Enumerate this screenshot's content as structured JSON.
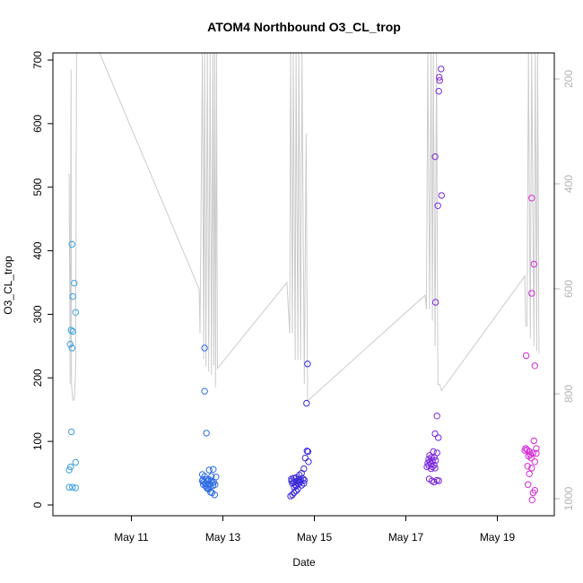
{
  "chart_data": {
    "type": "scatter",
    "title": "ATOM4 Northbound O3_CL_trop",
    "xlabel": "Date",
    "ylabel": "O3_CL_trop",
    "xlim": [
      9.5,
      20.3
    ],
    "ylim": [
      0,
      700
    ],
    "y_ticks": [
      0,
      100,
      200,
      300,
      400,
      500,
      600,
      700
    ],
    "x_ticks": [
      11,
      13,
      15,
      17,
      19
    ],
    "x_tick_labels": [
      "May 11",
      "May 13",
      "May 15",
      "May 17",
      "May 19"
    ],
    "y2_ticks": [
      200,
      400,
      600,
      800,
      1000
    ],
    "y2_axis_color": "#b3b3b3",
    "line_color": "#cccccc",
    "groups": [
      {
        "color": "#3aa0e0",
        "points": [
          [
            9.7,
            410
          ],
          [
            9.75,
            349
          ],
          [
            9.72,
            328
          ],
          [
            9.78,
            303
          ],
          [
            9.68,
            275
          ],
          [
            9.72,
            273
          ],
          [
            9.66,
            253
          ],
          [
            9.7,
            247
          ],
          [
            9.69,
            115
          ],
          [
            9.78,
            67
          ],
          [
            9.67,
            60
          ],
          [
            9.64,
            55
          ],
          [
            9.64,
            28
          ],
          [
            9.71,
            28
          ],
          [
            9.78,
            27
          ]
        ]
      },
      {
        "color": "#2f6ce6",
        "points": [
          [
            12.6,
            247
          ],
          [
            12.6,
            179
          ],
          [
            12.64,
            113
          ],
          [
            12.55,
            48
          ],
          [
            12.7,
            55
          ],
          [
            12.79,
            56
          ],
          [
            12.6,
            45
          ],
          [
            12.75,
            45
          ],
          [
            12.64,
            40
          ],
          [
            12.7,
            40
          ],
          [
            12.85,
            44
          ],
          [
            12.55,
            38
          ],
          [
            12.58,
            36
          ],
          [
            12.62,
            34
          ],
          [
            12.67,
            37
          ],
          [
            12.72,
            33
          ],
          [
            12.77,
            35
          ],
          [
            12.8,
            36
          ],
          [
            12.57,
            32
          ],
          [
            12.62,
            30
          ],
          [
            12.67,
            32
          ],
          [
            12.72,
            29
          ],
          [
            12.78,
            30
          ],
          [
            12.83,
            32
          ],
          [
            12.64,
            28
          ],
          [
            12.66,
            26
          ],
          [
            12.69,
            25
          ],
          [
            12.73,
            20
          ],
          [
            12.76,
            19
          ],
          [
            12.82,
            16
          ],
          [
            12.56,
            40
          ],
          [
            12.74,
            38
          ]
        ]
      },
      {
        "color": "#3a28d8",
        "points": [
          [
            14.85,
            222
          ],
          [
            14.83,
            160
          ],
          [
            14.84,
            85
          ],
          [
            14.86,
            84
          ],
          [
            14.87,
            68
          ],
          [
            14.8,
            74
          ],
          [
            14.77,
            57
          ],
          [
            14.72,
            50
          ],
          [
            14.67,
            47
          ],
          [
            14.6,
            43
          ],
          [
            14.55,
            42
          ],
          [
            14.5,
            41
          ],
          [
            14.65,
            40
          ],
          [
            14.7,
            40
          ],
          [
            14.75,
            41
          ],
          [
            14.5,
            38
          ],
          [
            14.55,
            36
          ],
          [
            14.62,
            37
          ],
          [
            14.68,
            38
          ],
          [
            14.78,
            39
          ],
          [
            14.52,
            34
          ],
          [
            14.58,
            32
          ],
          [
            14.65,
            33
          ],
          [
            14.72,
            31
          ],
          [
            14.77,
            34
          ],
          [
            14.6,
            30
          ],
          [
            14.56,
            28
          ],
          [
            14.64,
            25
          ],
          [
            14.6,
            22
          ],
          [
            14.55,
            19
          ],
          [
            14.52,
            16
          ],
          [
            14.48,
            14
          ],
          [
            14.69,
            36
          ]
        ]
      },
      {
        "color": "#7a28dc",
        "points": [
          [
            17.77,
            686
          ],
          [
            17.73,
            673
          ],
          [
            17.74,
            668
          ],
          [
            17.72,
            651
          ],
          [
            17.64,
            548
          ],
          [
            17.78,
            487
          ],
          [
            17.7,
            471
          ],
          [
            17.65,
            319
          ],
          [
            17.68,
            140
          ],
          [
            17.64,
            112
          ],
          [
            17.71,
            106
          ],
          [
            17.6,
            84
          ],
          [
            17.68,
            82
          ],
          [
            17.52,
            78
          ],
          [
            17.56,
            75
          ],
          [
            17.62,
            75
          ],
          [
            17.5,
            72
          ],
          [
            17.58,
            70
          ],
          [
            17.65,
            70
          ],
          [
            17.52,
            68
          ],
          [
            17.48,
            66
          ],
          [
            17.55,
            65
          ],
          [
            17.62,
            63
          ],
          [
            17.5,
            62
          ],
          [
            17.46,
            60
          ],
          [
            17.58,
            60
          ],
          [
            17.64,
            58
          ],
          [
            17.55,
            57
          ],
          [
            17.51,
            41
          ],
          [
            17.57,
            38
          ],
          [
            17.62,
            36
          ],
          [
            17.68,
            39
          ],
          [
            17.72,
            38
          ]
        ]
      },
      {
        "color": "#d628d6",
        "points": [
          [
            19.75,
            483
          ],
          [
            19.8,
            379
          ],
          [
            19.75,
            333
          ],
          [
            19.63,
            235
          ],
          [
            19.82,
            219
          ],
          [
            19.8,
            101
          ],
          [
            19.62,
            89
          ],
          [
            19.85,
            89
          ],
          [
            19.65,
            87
          ],
          [
            19.6,
            86
          ],
          [
            19.7,
            84
          ],
          [
            19.78,
            82
          ],
          [
            19.85,
            81
          ],
          [
            19.72,
            79
          ],
          [
            19.68,
            77
          ],
          [
            19.74,
            74
          ],
          [
            19.82,
            68
          ],
          [
            19.66,
            61
          ],
          [
            19.75,
            58
          ],
          [
            19.7,
            49
          ],
          [
            19.67,
            32
          ],
          [
            19.82,
            23
          ],
          [
            19.78,
            19
          ],
          [
            19.76,
            8
          ]
        ]
      }
    ],
    "altitude_line": [
      [
        9.62,
        520
      ],
      [
        9.64,
        520
      ],
      [
        9.66,
        190
      ],
      [
        9.68,
        685
      ],
      [
        9.69,
        190
      ],
      [
        9.72,
        165
      ],
      [
        9.75,
        165
      ],
      [
        9.78,
        210
      ],
      [
        9.8,
        710
      ],
      [
        9.8,
        712
      ],
      [
        9.9,
        712
      ],
      [
        10.3,
        712
      ],
      [
        12.48,
        340
      ],
      [
        12.5,
        270
      ],
      [
        12.55,
        712
      ],
      [
        12.58,
        230
      ],
      [
        12.6,
        712
      ],
      [
        12.63,
        218
      ],
      [
        12.66,
        712
      ],
      [
        12.69,
        210
      ],
      [
        12.72,
        712
      ],
      [
        12.75,
        205
      ],
      [
        12.78,
        712
      ],
      [
        12.8,
        220
      ],
      [
        12.82,
        712
      ],
      [
        12.84,
        185
      ],
      [
        12.86,
        712
      ],
      [
        12.88,
        215
      ],
      [
        14.4,
        350
      ],
      [
        14.46,
        270
      ],
      [
        14.48,
        712
      ],
      [
        14.52,
        270
      ],
      [
        14.54,
        712
      ],
      [
        14.58,
        228
      ],
      [
        14.6,
        712
      ],
      [
        14.64,
        228
      ],
      [
        14.66,
        712
      ],
      [
        14.7,
        228
      ],
      [
        14.73,
        712
      ],
      [
        14.78,
        190
      ],
      [
        14.82,
        585
      ],
      [
        14.85,
        165
      ],
      [
        14.87,
        165
      ],
      [
        17.42,
        330
      ],
      [
        17.45,
        308
      ],
      [
        17.48,
        712
      ],
      [
        17.52,
        308
      ],
      [
        17.55,
        712
      ],
      [
        17.58,
        290
      ],
      [
        17.6,
        712
      ],
      [
        17.64,
        250
      ],
      [
        17.67,
        712
      ],
      [
        17.7,
        190
      ],
      [
        17.74,
        190
      ],
      [
        17.78,
        180
      ],
      [
        19.6,
        360
      ],
      [
        19.62,
        282
      ],
      [
        19.65,
        282
      ],
      [
        19.68,
        712
      ],
      [
        19.72,
        262
      ],
      [
        19.75,
        712
      ],
      [
        19.8,
        250
      ],
      [
        19.83,
        712
      ],
      [
        19.86,
        242
      ],
      [
        19.88,
        712
      ],
      [
        19.91,
        238
      ]
    ]
  }
}
